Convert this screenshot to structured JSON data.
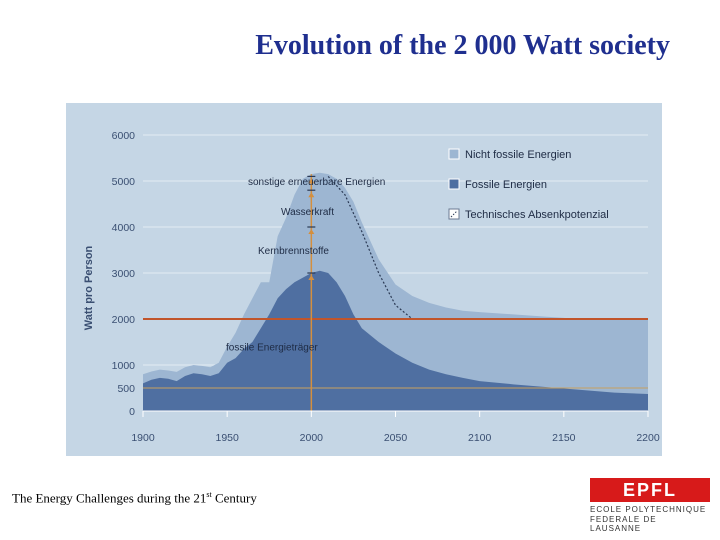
{
  "slide": {
    "title": "Evolution of the 2 000 Watt society",
    "footer_text": "The Energy Challenges during the 21",
    "footer_sup": "st",
    "footer_tail": " Century"
  },
  "logo": {
    "wordmark": "EPFL",
    "line1": "ECOLE POLYTECHNIQUE",
    "line2": "FEDERALE DE LAUSANNE"
  },
  "colors": {
    "panel_bg": "#c5d6e5",
    "nonfossil": "#9db6d2",
    "fossil": "#4f6fa1",
    "line_2000": "#c1552b",
    "line_500": "#c8a060",
    "year_2000_marker": "#d48f3e"
  },
  "chart_data": {
    "type": "area",
    "title": "",
    "xlabel": "",
    "ylabel": "Watt pro Person",
    "xlim": [
      1900,
      2200
    ],
    "ylim": [
      0,
      6000
    ],
    "x_ticks": [
      "1900",
      "1950",
      "2000",
      "2050",
      "2100",
      "2150",
      "2200"
    ],
    "y_ticks": [
      "0",
      "500",
      "1000",
      "2000",
      "3000",
      "4000",
      "5000",
      "6000"
    ],
    "legend": {
      "placement": "top-right",
      "entries": [
        "Nicht fossile Energien",
        "Fossile Energien",
        "Technisches Absenkpotenzial"
      ]
    },
    "series": [
      {
        "name": "Fossile Energien",
        "x": [
          1900,
          1905,
          1910,
          1915,
          1920,
          1925,
          1930,
          1935,
          1940,
          1945,
          1950,
          1955,
          1960,
          1965,
          1970,
          1975,
          1980,
          1985,
          1990,
          1995,
          2000,
          2005,
          2010,
          2015,
          2020,
          2025,
          2030,
          2040,
          2050,
          2060,
          2070,
          2080,
          2090,
          2100,
          2120,
          2140,
          2160,
          2180,
          2200
        ],
        "y": [
          600,
          680,
          720,
          700,
          650,
          760,
          820,
          800,
          760,
          820,
          1050,
          1150,
          1350,
          1500,
          1800,
          2100,
          2450,
          2650,
          2800,
          2900,
          3000,
          3050,
          3000,
          2800,
          2500,
          2100,
          1800,
          1500,
          1250,
          1050,
          900,
          800,
          720,
          650,
          580,
          520,
          460,
          400,
          370
        ]
      },
      {
        "name": "Nicht fossile Energien",
        "x": [
          1900,
          1905,
          1910,
          1915,
          1920,
          1925,
          1930,
          1935,
          1940,
          1945,
          1950,
          1955,
          1960,
          1965,
          1970,
          1975,
          1980,
          1985,
          1990,
          1995,
          2000,
          2005,
          2010,
          2015,
          2020,
          2025,
          2030,
          2040,
          2050,
          2060,
          2070,
          2080,
          2090,
          2100,
          2120,
          2140,
          2160,
          2180,
          2200
        ],
        "y": [
          800,
          860,
          900,
          880,
          850,
          950,
          1000,
          980,
          950,
          1050,
          1400,
          1700,
          2100,
          2450,
          2800,
          2800,
          3800,
          4200,
          4700,
          5050,
          5150,
          5180,
          5150,
          5050,
          4850,
          4550,
          4100,
          3300,
          2750,
          2500,
          2350,
          2250,
          2180,
          2150,
          2100,
          2050,
          2000,
          2000,
          2000
        ]
      },
      {
        "name": "Technisches Absenkpotenzial",
        "style": "dotted",
        "x": [
          2010,
          2020,
          2030,
          2040,
          2050,
          2060
        ],
        "y": [
          5100,
          4700,
          3900,
          3000,
          2300,
          2000
        ]
      }
    ],
    "reference_lines": [
      {
        "y": 2000,
        "label": "2000"
      },
      {
        "y": 500,
        "label": "500"
      }
    ],
    "annotations": [
      {
        "text": "sonstige erneuerbare Energien",
        "y": 5000
      },
      {
        "text": "Wasserkraft",
        "y": 4350
      },
      {
        "text": "Kernbrennstoffe",
        "y": 3500
      },
      {
        "text": "fossile Energieträger",
        "y": 1400
      }
    ],
    "marker_x": 2000,
    "marker_levels": [
      3000,
      4000,
      4800,
      5100
    ]
  }
}
